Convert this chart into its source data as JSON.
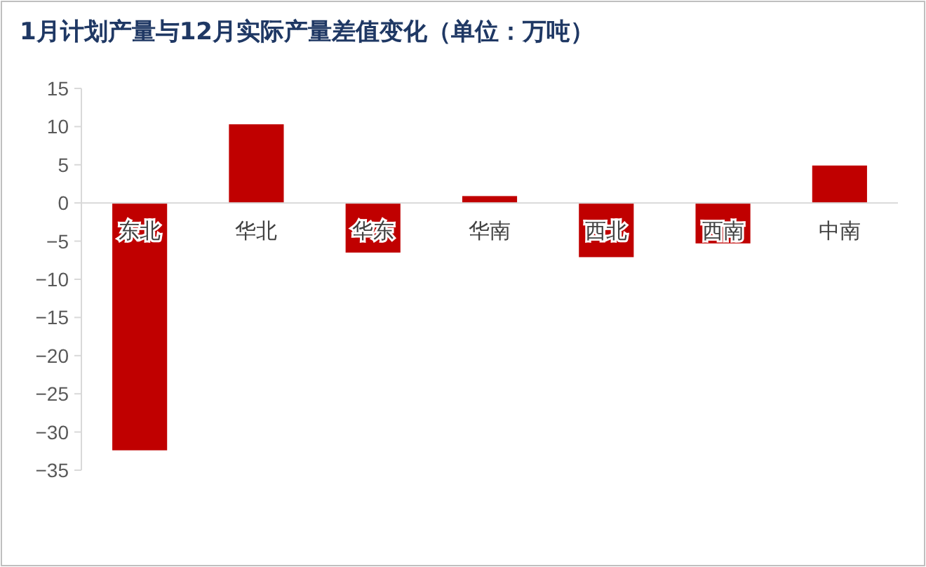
{
  "chart_data": {
    "type": "bar",
    "title": "1月计划产量与12月实际产量差值变化（单位：万吨）",
    "categories": [
      "东北",
      "华北",
      "华东",
      "华南",
      "西北",
      "西南",
      "中南"
    ],
    "values": [
      -32.4,
      10.3,
      -6.5,
      0.9,
      -7.1,
      -5.3,
      4.9
    ],
    "color": "#c00000",
    "ylim": [
      -35,
      15
    ],
    "yticks": [
      -35,
      -30,
      -25,
      -20,
      -15,
      -10,
      -5,
      0,
      5,
      10,
      15
    ],
    "grid": false
  }
}
